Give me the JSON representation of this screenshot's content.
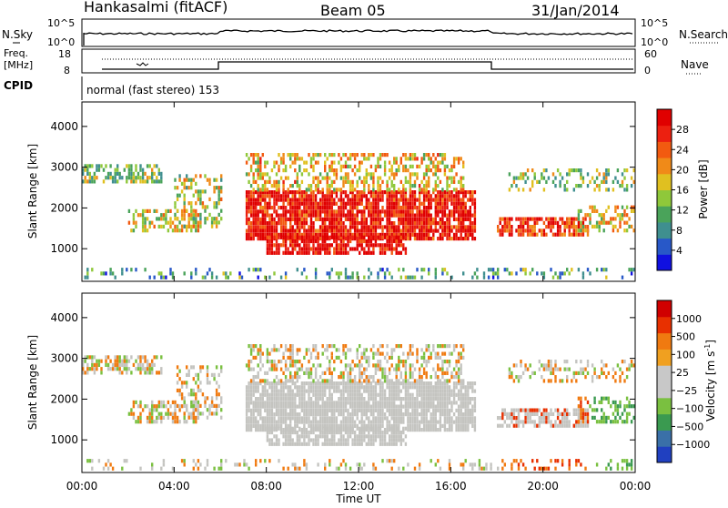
{
  "header": {
    "station": "Hankasalmi (fitACF)",
    "beam": "Beam 05",
    "date": "31/Jan/2014"
  },
  "top_panels": {
    "nsky_label": "N.Sky",
    "nsky_ticks": [
      "10^5",
      "10^0"
    ],
    "nsearch_label": "N.Search",
    "nsearch_ticks": [
      "10^5",
      "10^0"
    ],
    "freq_label_1": "Freq.",
    "freq_label_2": "[MHz]",
    "freq_ticks": [
      "18",
      "8"
    ],
    "nave_label": "Nave",
    "nave_ticks": [
      "60",
      "0"
    ],
    "cpid_label": "CPID",
    "cpid_text": "normal (fast stereo) 153"
  },
  "colors": {
    "power_scale": [
      "#1010e0",
      "#2858c8",
      "#3f8f8f",
      "#4aa35a",
      "#8fc83a",
      "#e0c020",
      "#f08a18",
      "#f25a10",
      "#ec2010",
      "#e00000"
    ],
    "velocity_scale": [
      "#d00000",
      "#e83000",
      "#f07a10",
      "#f0a020",
      "#c8c8c8",
      "#c8c8c8",
      "#7ac040",
      "#3a9a50",
      "#3a70a8",
      "#2040c0"
    ],
    "gray": "#c4c4c0"
  },
  "chart_data": [
    {
      "type": "heatmap",
      "name": "power",
      "ylabel": "Slant Range [km]",
      "yticks": [
        1000,
        2000,
        3000,
        4000
      ],
      "ylim": [
        200,
        4600
      ],
      "xlim": [
        0,
        24
      ],
      "xticks_hours": [
        0,
        4,
        8,
        12,
        16,
        20,
        24
      ],
      "colorbar_label": "Power [dB]",
      "colorbar_ticks": [
        "4",
        "8",
        "12",
        "16",
        "20",
        "24",
        "28"
      ],
      "colorbar_range": [
        0,
        30
      ]
    },
    {
      "type": "heatmap",
      "name": "velocity",
      "ylabel": "Slant Range [km]",
      "yticks": [
        1000,
        2000,
        3000,
        4000
      ],
      "ylim": [
        200,
        4600
      ],
      "xlim": [
        0,
        24
      ],
      "xlabel": "Time UT",
      "xtick_labels": [
        "00:00",
        "04:00",
        "08:00",
        "12:00",
        "16:00",
        "20:00",
        "00:00"
      ],
      "colorbar_label": "Velocity [m s",
      "colorbar_unit_exp": "-1",
      "colorbar_unit_close": "]",
      "colorbar_ticks": [
        "1000",
        "500",
        "100",
        "25",
        "−25",
        "−100",
        "−500",
        "−1000"
      ]
    }
  ]
}
